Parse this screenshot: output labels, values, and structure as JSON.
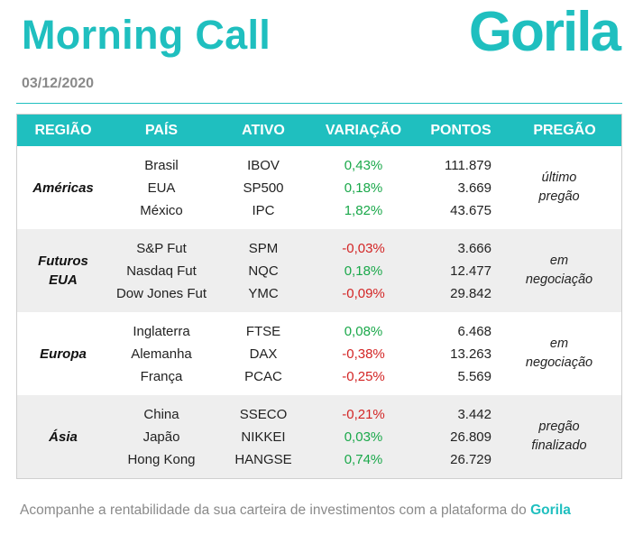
{
  "header": {
    "title": "Morning Call",
    "logo_text": "Gorila",
    "date": "03/12/2020"
  },
  "colors": {
    "accent": "#1fbfbf",
    "positive": "#1aa84a",
    "negative": "#d32525",
    "alt_row": "#eeeeee"
  },
  "table": {
    "headers": {
      "region": "REGIÃO",
      "country": "PAÍS",
      "asset": "ATIVO",
      "variation": "VARIAÇÃO",
      "points": "PONTOS",
      "floor": "PREGÃO"
    },
    "groups": [
      {
        "region_lines": [
          "Américas"
        ],
        "rows": [
          {
            "country": "Brasil",
            "asset": "IBOV",
            "variation": "0,43%",
            "trend": "pos",
            "points": "111.879"
          },
          {
            "country": "EUA",
            "asset": "SP500",
            "variation": "0,18%",
            "trend": "pos",
            "points": "3.669"
          },
          {
            "country": "México",
            "asset": "IPC",
            "variation": "1,82%",
            "trend": "pos",
            "points": "43.675"
          }
        ],
        "status_lines": [
          "último",
          "pregão"
        ]
      },
      {
        "region_lines": [
          "Futuros",
          "EUA"
        ],
        "rows": [
          {
            "country": "S&P Fut",
            "asset": "SPM",
            "variation": "-0,03%",
            "trend": "neg",
            "points": "3.666"
          },
          {
            "country": "Nasdaq Fut",
            "asset": "NQC",
            "variation": "0,18%",
            "trend": "pos",
            "points": "12.477"
          },
          {
            "country": "Dow Jones Fut",
            "asset": "YMC",
            "variation": "-0,09%",
            "trend": "neg",
            "points": "29.842"
          }
        ],
        "status_lines": [
          "em",
          "negociação"
        ]
      },
      {
        "region_lines": [
          "Europa"
        ],
        "rows": [
          {
            "country": "Inglaterra",
            "asset": "FTSE",
            "variation": "0,08%",
            "trend": "pos",
            "points": "6.468"
          },
          {
            "country": "Alemanha",
            "asset": "DAX",
            "variation": "-0,38%",
            "trend": "neg",
            "points": "13.263"
          },
          {
            "country": "França",
            "asset": "PCAC",
            "variation": "-0,25%",
            "trend": "neg",
            "points": "5.569"
          }
        ],
        "status_lines": [
          "em",
          "negociação"
        ]
      },
      {
        "region_lines": [
          "Ásia"
        ],
        "rows": [
          {
            "country": "China",
            "asset": "SSECO",
            "variation": "-0,21%",
            "trend": "neg",
            "points": "3.442"
          },
          {
            "country": "Japão",
            "asset": "NIKKEI",
            "variation": "0,03%",
            "trend": "pos",
            "points": "26.809"
          },
          {
            "country": "Hong Kong",
            "asset": "HANGSE",
            "variation": "0,74%",
            "trend": "pos",
            "points": "26.729"
          }
        ],
        "status_lines": [
          "pregão",
          "finalizado"
        ]
      }
    ]
  },
  "footer": {
    "text": "Acompanhe a rentabilidade da sua carteira de investimentos com a plataforma do ",
    "brand": "Gorila"
  }
}
